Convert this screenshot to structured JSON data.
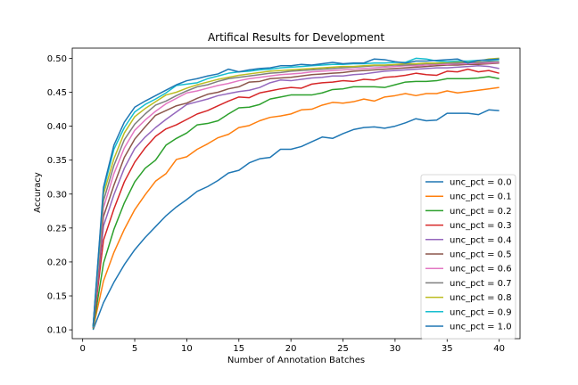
{
  "chart_data": {
    "type": "line",
    "title": "Artifical Results for Development",
    "xlabel": "Number of Annotation Batches",
    "ylabel": "Accuracy",
    "xlim": [
      -1,
      42
    ],
    "ylim": [
      0.087,
      0.515
    ],
    "xticks": [
      0,
      5,
      10,
      15,
      20,
      25,
      30,
      35,
      40
    ],
    "yticks": [
      0.1,
      0.15,
      0.2,
      0.25,
      0.3,
      0.35,
      0.4,
      0.45,
      0.5
    ],
    "xtick_labels": [
      "0",
      "5",
      "10",
      "15",
      "20",
      "25",
      "30",
      "35",
      "40"
    ],
    "ytick_labels": [
      "0.10",
      "0.15",
      "0.20",
      "0.25",
      "0.30",
      "0.35",
      "0.40",
      "0.45",
      "0.50"
    ],
    "legend_position": "lower right",
    "grid": false,
    "x": [
      1,
      2,
      3,
      4,
      5,
      6,
      7,
      8,
      9,
      10,
      11,
      12,
      13,
      14,
      15,
      16,
      17,
      18,
      19,
      20,
      21,
      22,
      23,
      24,
      25,
      26,
      27,
      28,
      29,
      30,
      31,
      32,
      33,
      34,
      35,
      36,
      37,
      38,
      39,
      40
    ],
    "series": [
      {
        "name": "unc_pct = 0.0",
        "color": "#1f77b4",
        "values": [
          0.1,
          0.14,
          0.17,
          0.196,
          0.218,
          0.236,
          0.252,
          0.268,
          0.281,
          0.292,
          0.304,
          0.311,
          0.32,
          0.331,
          0.335,
          0.346,
          0.352,
          0.354,
          0.366,
          0.366,
          0.37,
          0.377,
          0.384,
          0.382,
          0.389,
          0.395,
          0.398,
          0.399,
          0.397,
          0.4,
          0.405,
          0.411,
          0.408,
          0.409,
          0.419,
          0.419,
          0.419,
          0.417,
          0.424,
          0.423
        ]
      },
      {
        "name": "unc_pct = 0.1",
        "color": "#ff7f0e",
        "values": [
          0.102,
          0.172,
          0.214,
          0.248,
          0.277,
          0.299,
          0.319,
          0.33,
          0.351,
          0.355,
          0.366,
          0.374,
          0.383,
          0.388,
          0.398,
          0.401,
          0.408,
          0.413,
          0.415,
          0.418,
          0.424,
          0.425,
          0.431,
          0.435,
          0.434,
          0.436,
          0.44,
          0.437,
          0.443,
          0.445,
          0.448,
          0.445,
          0.448,
          0.448,
          0.452,
          0.449,
          0.451,
          0.453,
          0.455,
          0.457
        ]
      },
      {
        "name": "unc_pct = 0.2",
        "color": "#2ca02c",
        "values": [
          0.102,
          0.198,
          0.248,
          0.287,
          0.318,
          0.338,
          0.35,
          0.372,
          0.382,
          0.39,
          0.402,
          0.404,
          0.408,
          0.418,
          0.427,
          0.428,
          0.432,
          0.44,
          0.443,
          0.446,
          0.446,
          0.446,
          0.449,
          0.454,
          0.455,
          0.458,
          0.458,
          0.458,
          0.457,
          0.461,
          0.465,
          0.466,
          0.466,
          0.467,
          0.47,
          0.47,
          0.47,
          0.471,
          0.473,
          0.47
        ]
      },
      {
        "name": "unc_pct = 0.3",
        "color": "#d62728",
        "values": [
          0.103,
          0.232,
          0.278,
          0.318,
          0.347,
          0.368,
          0.385,
          0.396,
          0.402,
          0.41,
          0.418,
          0.423,
          0.43,
          0.437,
          0.443,
          0.442,
          0.449,
          0.452,
          0.455,
          0.457,
          0.456,
          0.462,
          0.464,
          0.465,
          0.467,
          0.466,
          0.469,
          0.468,
          0.472,
          0.473,
          0.475,
          0.478,
          0.476,
          0.475,
          0.481,
          0.48,
          0.484,
          0.48,
          0.482,
          0.478
        ]
      },
      {
        "name": "unc_pct = 0.4",
        "color": "#9467bd",
        "values": [
          0.103,
          0.253,
          0.299,
          0.338,
          0.367,
          0.384,
          0.398,
          0.41,
          0.421,
          0.432,
          0.436,
          0.44,
          0.445,
          0.448,
          0.451,
          0.453,
          0.457,
          0.464,
          0.468,
          0.467,
          0.469,
          0.471,
          0.472,
          0.474,
          0.474,
          0.476,
          0.477,
          0.479,
          0.481,
          0.482,
          0.483,
          0.484,
          0.485,
          0.486,
          0.486,
          0.487,
          0.488,
          0.489,
          0.488,
          0.485
        ]
      },
      {
        "name": "unc_pct = 0.5",
        "color": "#8c564b",
        "values": [
          0.104,
          0.267,
          0.313,
          0.354,
          0.381,
          0.399,
          0.416,
          0.423,
          0.43,
          0.434,
          0.441,
          0.447,
          0.45,
          0.455,
          0.458,
          0.465,
          0.466,
          0.47,
          0.471,
          0.472,
          0.474,
          0.476,
          0.477,
          0.478,
          0.479,
          0.481,
          0.482,
          0.483,
          0.484,
          0.485,
          0.486,
          0.487,
          0.488,
          0.489,
          0.49,
          0.49,
          0.491,
          0.491,
          0.492,
          0.493
        ]
      },
      {
        "name": "unc_pct = 0.6",
        "color": "#e377c2",
        "values": [
          0.104,
          0.28,
          0.33,
          0.368,
          0.394,
          0.409,
          0.422,
          0.433,
          0.441,
          0.449,
          0.452,
          0.456,
          0.46,
          0.463,
          0.467,
          0.47,
          0.472,
          0.474,
          0.476,
          0.477,
          0.478,
          0.48,
          0.481,
          0.482,
          0.483,
          0.484,
          0.485,
          0.486,
          0.487,
          0.488,
          0.489,
          0.489,
          0.49,
          0.491,
          0.491,
          0.492,
          0.492,
          0.493,
          0.493,
          0.494
        ]
      },
      {
        "name": "unc_pct = 0.7",
        "color": "#7f7f7f",
        "values": [
          0.104,
          0.29,
          0.342,
          0.38,
          0.403,
          0.418,
          0.431,
          0.437,
          0.445,
          0.452,
          0.458,
          0.461,
          0.466,
          0.47,
          0.472,
          0.474,
          0.476,
          0.478,
          0.479,
          0.481,
          0.482,
          0.483,
          0.484,
          0.485,
          0.486,
          0.487,
          0.488,
          0.489,
          0.489,
          0.49,
          0.49,
          0.491,
          0.492,
          0.492,
          0.493,
          0.493,
          0.494,
          0.494,
          0.495,
          0.495
        ]
      },
      {
        "name": "unc_pct = 0.8",
        "color": "#bcbd22",
        "values": [
          0.104,
          0.3,
          0.352,
          0.39,
          0.414,
          0.426,
          0.436,
          0.446,
          0.45,
          0.456,
          0.461,
          0.465,
          0.469,
          0.472,
          0.475,
          0.477,
          0.479,
          0.481,
          0.482,
          0.483,
          0.484,
          0.485,
          0.486,
          0.487,
          0.488,
          0.488,
          0.489,
          0.49,
          0.49,
          0.491,
          0.492,
          0.492,
          0.493,
          0.493,
          0.494,
          0.495,
          0.495,
          0.496,
          0.499,
          0.5
        ]
      },
      {
        "name": "unc_pct = 0.9",
        "color": "#17becf",
        "values": [
          0.104,
          0.306,
          0.366,
          0.398,
          0.421,
          0.432,
          0.44,
          0.449,
          0.46,
          0.462,
          0.464,
          0.47,
          0.474,
          0.478,
          0.48,
          0.481,
          0.483,
          0.484,
          0.486,
          0.487,
          0.488,
          0.489,
          0.49,
          0.491,
          0.491,
          0.492,
          0.492,
          0.493,
          0.493,
          0.494,
          0.494,
          0.5,
          0.499,
          0.496,
          0.495,
          0.496,
          0.496,
          0.497,
          0.497,
          0.498
        ]
      },
      {
        "name": "unc_pct = 1.0",
        "color": "#1f77b4",
        "values": [
          0.105,
          0.31,
          0.372,
          0.406,
          0.428,
          0.437,
          0.445,
          0.453,
          0.461,
          0.467,
          0.47,
          0.474,
          0.477,
          0.484,
          0.48,
          0.483,
          0.485,
          0.486,
          0.489,
          0.489,
          0.491,
          0.49,
          0.492,
          0.494,
          0.492,
          0.493,
          0.493,
          0.499,
          0.498,
          0.495,
          0.493,
          0.496,
          0.496,
          0.497,
          0.498,
          0.499,
          0.493,
          0.497,
          0.498,
          0.499
        ]
      }
    ]
  }
}
